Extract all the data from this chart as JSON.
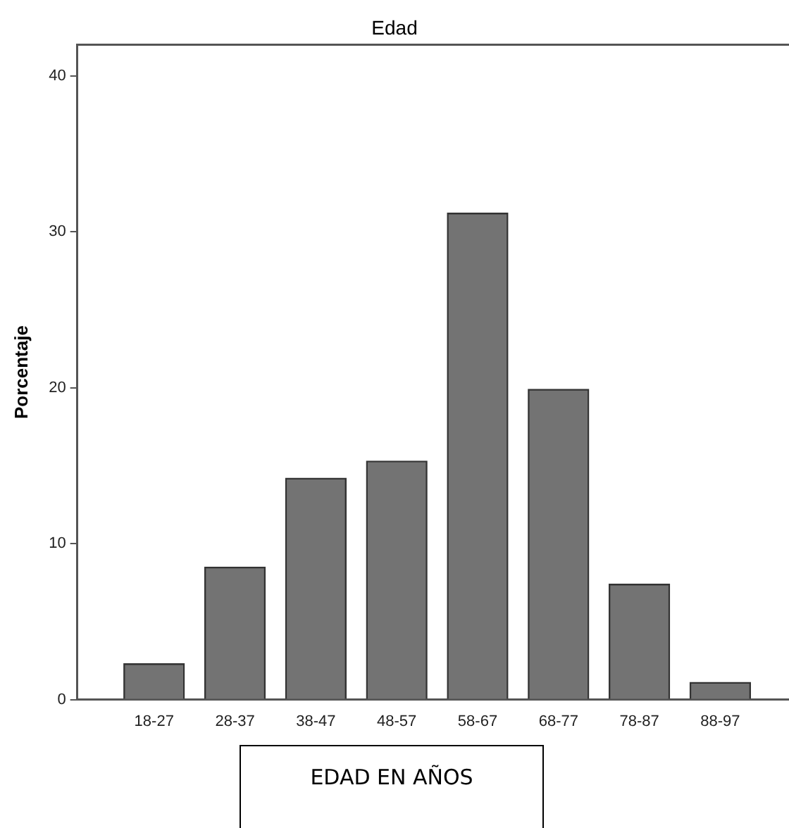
{
  "chart_data": {
    "type": "bar",
    "title": "Edad",
    "xlabel": "EDAD EN AÑOS",
    "ylabel": "Porcentaje",
    "categories": [
      "18-27",
      "28-37",
      "38-47",
      "48-57",
      "58-67",
      "68-77",
      "78-87",
      "88-97"
    ],
    "values": [
      2.3,
      8.5,
      14.2,
      15.3,
      31.2,
      19.9,
      7.4,
      1.1
    ],
    "color": "#737373",
    "ylim": [
      0,
      42
    ],
    "yticks": [
      0,
      10,
      20,
      30,
      40
    ],
    "grid": false,
    "legend": false
  }
}
